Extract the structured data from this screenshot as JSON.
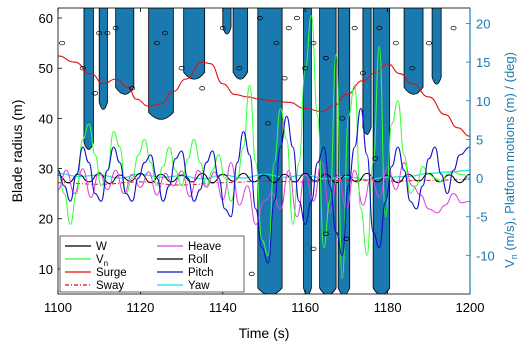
{
  "chart_data": {
    "type": "line",
    "xlabel": "Time (s)",
    "ylabel_left": "Blade radius (m)",
    "ylabel_right_main": "V",
    "ylabel_right_sub": "n",
    "ylabel_right_rest": " (m/s), Platform motions (m) / (deg)",
    "xlim": [
      1100,
      1200
    ],
    "ylim_left": [
      5,
      62
    ],
    "ylim_right": [
      -15,
      22
    ],
    "x_ticks": [
      "1100",
      "1120",
      "1140",
      "1160",
      "1180",
      "1200"
    ],
    "y_left_ticks": [
      "10",
      "20",
      "30",
      "40",
      "50",
      "60"
    ],
    "y_right_ticks": [
      "-10",
      "-5",
      "0",
      "5",
      "10",
      "15",
      "20"
    ],
    "colors": {
      "filled_regions": "#1a7ab0",
      "W": "#000000",
      "Vn": "#33ff33",
      "Surge": "#e01010",
      "Sway": "#d01010",
      "Heave": "#e040e0",
      "Roll": "#000000",
      "Pitch": "#1010c8",
      "Yaw": "#20e0e0",
      "right_axis": "#1a7ab0"
    },
    "legend": {
      "placement": "bottom-left",
      "entries": [
        {
          "key": "W",
          "label": "W",
          "sub": ""
        },
        {
          "key": "Heave",
          "label": "Heave",
          "sub": ""
        },
        {
          "key": "Vn",
          "label": "V",
          "sub": "n"
        },
        {
          "key": "Roll",
          "label": "Roll",
          "sub": ""
        },
        {
          "key": "Surge",
          "label": "Surge",
          "sub": ""
        },
        {
          "key": "Pitch",
          "label": "Pitch",
          "sub": ""
        },
        {
          "key": "Sway",
          "label": "Sway",
          "sub": ""
        },
        {
          "key": "Yaw",
          "label": "Yaw",
          "sub": ""
        }
      ]
    },
    "filled_regions_blade_radius": [
      {
        "name": "region-1",
        "x_start": 1106.3,
        "x_end": 1108.6,
        "bottom": 34
      },
      {
        "name": "region-2",
        "x_start": 1110.0,
        "x_end": 1112.0,
        "bottom": 42
      },
      {
        "name": "region-3",
        "x_start": 1114.0,
        "x_end": 1118.4,
        "bottom": 45
      },
      {
        "name": "region-4",
        "x_start": 1122.0,
        "x_end": 1128.0,
        "bottom": 40
      },
      {
        "name": "region-5",
        "x_start": 1130.5,
        "x_end": 1135.6,
        "bottom": 48
      },
      {
        "name": "region-6",
        "x_start": 1140.0,
        "x_end": 1142.0,
        "bottom": 57
      },
      {
        "name": "region-7",
        "x_start": 1142.5,
        "x_end": 1146.0,
        "bottom": 48
      },
      {
        "name": "region-8",
        "x_start": 1148.5,
        "x_end": 1154.4,
        "bottom": 5
      },
      {
        "name": "region-9",
        "x_start": 1159.6,
        "x_end": 1161.5,
        "bottom": 5
      },
      {
        "name": "region-10",
        "x_start": 1163.5,
        "x_end": 1167.5,
        "bottom": 5
      },
      {
        "name": "region-11",
        "x_start": 1168.0,
        "x_end": 1170.8,
        "bottom": 5
      },
      {
        "name": "region-12",
        "x_start": 1174.0,
        "x_end": 1176.0,
        "bottom": 37
      },
      {
        "name": "region-13",
        "x_start": 1176.5,
        "x_end": 1180.5,
        "bottom": 5
      },
      {
        "name": "region-14",
        "x_start": 1184.0,
        "x_end": 1188.6,
        "bottom": 45
      },
      {
        "name": "region-15",
        "x_start": 1190.8,
        "x_end": 1193.0,
        "bottom": 47
      }
    ],
    "W_points": [
      [
        1101,
        55
      ],
      [
        1106,
        50
      ],
      [
        1109,
        45
      ],
      [
        1110,
        57
      ],
      [
        1112,
        57
      ],
      [
        1114,
        58
      ],
      [
        1118,
        46
      ],
      [
        1124,
        55
      ],
      [
        1126,
        57
      ],
      [
        1130,
        50
      ],
      [
        1135,
        46
      ],
      [
        1140,
        58
      ],
      [
        1144,
        50
      ],
      [
        1149,
        60
      ],
      [
        1151,
        39
      ],
      [
        1153,
        55
      ],
      [
        1155,
        48
      ],
      [
        1156,
        58
      ],
      [
        1158,
        60
      ],
      [
        1160,
        50
      ],
      [
        1162,
        55
      ],
      [
        1165,
        52
      ],
      [
        1169,
        40
      ],
      [
        1172,
        58
      ],
      [
        1174,
        49
      ],
      [
        1178,
        58
      ],
      [
        1182,
        55
      ],
      [
        1186,
        50
      ],
      [
        1190,
        55
      ],
      [
        1196,
        58
      ],
      [
        1147,
        9
      ],
      [
        1162,
        14
      ],
      [
        1165,
        17
      ],
      [
        1170,
        16
      ],
      [
        1177,
        32
      ]
    ],
    "series": [
      {
        "name": "Surge",
        "axis": "right",
        "key": "Surge",
        "x": [
          1100,
          1104,
          1108,
          1111,
          1114,
          1117,
          1119,
          1122,
          1125,
          1128,
          1131,
          1135,
          1137,
          1140,
          1143,
          1146,
          1149,
          1152,
          1156,
          1160,
          1164,
          1167,
          1170,
          1174,
          1177,
          1180,
          1183,
          1186,
          1190,
          1194,
          1197,
          1200
        ],
        "y": [
          15.8,
          15.0,
          13.5,
          12.2,
          12.8,
          11.8,
          10.2,
          9.3,
          9.6,
          11.2,
          12.8,
          15.0,
          14.8,
          12.2,
          10.8,
          10.5,
          10.2,
          10.0,
          9.8,
          9.0,
          8.6,
          9.4,
          10.8,
          12.6,
          13.6,
          14.8,
          13.5,
          12.2,
          10.5,
          8.2,
          6.5,
          5.4
        ]
      },
      {
        "name": "Sway",
        "axis": "right",
        "key": "Sway",
        "x": [
          1100,
          1110,
          1120,
          1130,
          1140,
          1150,
          1160,
          1170,
          1180,
          1190,
          1200
        ],
        "y": [
          -0.6,
          -0.8,
          -0.5,
          -0.9,
          -0.6,
          -0.4,
          -0.5,
          -0.3,
          -0.4,
          -0.3,
          -0.2
        ]
      },
      {
        "name": "Yaw",
        "axis": "right",
        "key": "Yaw",
        "x": [
          1100,
          1105,
          1110,
          1115,
          1120,
          1125,
          1130,
          1135,
          1140,
          1145,
          1150,
          1155,
          1160,
          1165,
          1170,
          1175,
          1180,
          1185,
          1190,
          1195,
          1200
        ],
        "y": [
          0.6,
          0.2,
          0.4,
          0.0,
          0.5,
          0.1,
          0.3,
          -0.1,
          0.4,
          0.0,
          0.5,
          0.1,
          0.4,
          -0.1,
          0.2,
          -0.2,
          0.1,
          0.2,
          0.6,
          0.8,
          1.0
        ]
      },
      {
        "name": "Roll",
        "axis": "right",
        "key": "Roll",
        "x": [
          1100,
          1102.5,
          1105,
          1107.5,
          1110,
          1112.5,
          1115,
          1117.5,
          1120,
          1122.5,
          1125,
          1127.5,
          1130,
          1132.5,
          1135,
          1137.5,
          1140,
          1142.5,
          1145,
          1147.5,
          1150,
          1152.5,
          1155,
          1157.5,
          1160,
          1162.5,
          1165,
          1167.5,
          1170,
          1172.5,
          1175,
          1177.5,
          1180,
          1182.5,
          1185,
          1187.5,
          1190,
          1192.5,
          1195,
          1197.5,
          1200
        ],
        "y": [
          0.4,
          -0.6,
          0.5,
          -0.5,
          0.6,
          -0.7,
          0.4,
          -0.4,
          0.6,
          -0.6,
          0.5,
          -0.5,
          0.4,
          -0.5,
          0.6,
          -0.6,
          0.5,
          -0.4,
          0.6,
          -0.5,
          0.4,
          -0.6,
          0.5,
          -0.5,
          0.6,
          -0.4,
          0.5,
          -0.6,
          0.4,
          -0.5,
          0.6,
          -0.5,
          0.4,
          -0.6,
          0.5,
          -0.4,
          0.6,
          -0.5,
          0.4,
          -0.6,
          0.5
        ]
      },
      {
        "name": "Heave",
        "axis": "right",
        "key": "Heave",
        "x": [
          1100,
          1102,
          1104,
          1106,
          1108,
          1110,
          1112,
          1114,
          1116,
          1118,
          1120,
          1122,
          1124,
          1126,
          1128,
          1130,
          1132,
          1134,
          1136,
          1138,
          1140,
          1142,
          1144,
          1146,
          1148,
          1150,
          1152,
          1154,
          1156,
          1158,
          1160,
          1162,
          1164,
          1166,
          1168,
          1170,
          1172,
          1174,
          1176,
          1178,
          1180,
          1182,
          1184,
          1186,
          1188,
          1190,
          1192,
          1194,
          1196,
          1198,
          1200
        ],
        "y": [
          -1.5,
          1.0,
          -2.0,
          1.2,
          -2.5,
          0.8,
          -1.5,
          1.0,
          -2.0,
          0.5,
          -1.2,
          0.8,
          -2.2,
          0.6,
          -1.0,
          0.9,
          -2.4,
          1.0,
          -1.2,
          0.8,
          -2.8,
          2.0,
          -3.5,
          -1.0,
          -6.0,
          -3.0,
          -2.0,
          -4.0,
          1.0,
          -5.0,
          0.5,
          -3.0,
          2.0,
          -4.5,
          0.5,
          -4.0,
          1.0,
          -3.5,
          0.0,
          -2.5,
          1.5,
          -1.5,
          2.0,
          -1.0,
          -2.2,
          -4.0,
          -4.5,
          -3.5,
          -2.0,
          -3.2,
          -3.0
        ]
      },
      {
        "name": "Vn",
        "axis": "right",
        "key": "Vn",
        "x": [
          1100,
          1101.5,
          1103,
          1104.5,
          1106,
          1107.5,
          1109,
          1110.5,
          1112,
          1113.5,
          1115,
          1116.5,
          1118,
          1119.5,
          1121,
          1122.5,
          1124,
          1125.5,
          1127,
          1128.5,
          1130,
          1131.5,
          1133,
          1134.5,
          1136,
          1137.5,
          1139,
          1140.5,
          1142,
          1143.5,
          1145,
          1146.5,
          1148,
          1149.5,
          1151,
          1152.5,
          1154,
          1155.5,
          1157,
          1158.5,
          1160,
          1161.5,
          1163,
          1164.5,
          1166,
          1167.5,
          1169,
          1170.5,
          1172,
          1173.5,
          1175,
          1176.5,
          1178,
          1179.5,
          1181,
          1182.5,
          1184,
          1185.5,
          1187,
          1188.5,
          1190,
          1191.5,
          1193,
          1194.5,
          1196,
          1197.5,
          1200
        ],
        "y": [
          1.0,
          -2.0,
          -6.0,
          -2.0,
          5.0,
          7.0,
          3.0,
          -1.0,
          1.0,
          6.0,
          4.0,
          -2.0,
          0.0,
          3.0,
          5.0,
          2.0,
          -1.0,
          1.5,
          4.0,
          1.0,
          -1.0,
          2.5,
          5.0,
          2.0,
          -1.0,
          1.0,
          3.0,
          0.0,
          -3.0,
          0.0,
          4.0,
          12.0,
          2.0,
          -8.0,
          -10.0,
          2.0,
          9.0,
          5.0,
          -6.0,
          2.0,
          14.0,
          21.0,
          8.0,
          -9.0,
          -3.0,
          16.0,
          -13.0,
          8.0,
          12.0,
          -4.0,
          -10.0,
          2.0,
          17.0,
          -5.0,
          7.0,
          10.0,
          3.0,
          -2.0,
          -1.0,
          1.5,
          0.5,
          0.0,
          -0.5,
          0.5,
          0.8,
          0.5,
          0.3
        ]
      },
      {
        "name": "Pitch",
        "axis": "right",
        "key": "Pitch",
        "x": [
          1100,
          1101.5,
          1103,
          1104.5,
          1106,
          1107.5,
          1109,
          1110.5,
          1112,
          1113.5,
          1115,
          1116.5,
          1118,
          1119.5,
          1121,
          1122.5,
          1124,
          1125.5,
          1127,
          1128.5,
          1130,
          1131.5,
          1133,
          1134.5,
          1136,
          1137.5,
          1139,
          1140.5,
          1142,
          1143.5,
          1145,
          1146.5,
          1148,
          1149.5,
          1151,
          1152.5,
          1154,
          1155.5,
          1157,
          1158.5,
          1160,
          1161.5,
          1163,
          1164.5,
          1166,
          1167.5,
          1169,
          1170.5,
          1172,
          1173.5,
          1175,
          1176.5,
          1178,
          1179.5,
          1181,
          1182.5,
          1184,
          1185.5,
          1187,
          1188.5,
          1190,
          1191.5,
          1193,
          1194.5,
          1196,
          1197.5,
          1200
        ],
        "y": [
          1.0,
          -1.0,
          -3.0,
          0.5,
          4.0,
          2.0,
          -2.0,
          -3.0,
          1.0,
          4.0,
          2.0,
          -2.0,
          -3.0,
          0.0,
          2.0,
          3.0,
          0.0,
          -3.0,
          -1.0,
          2.5,
          3.5,
          0.0,
          -3.0,
          -1.5,
          2.0,
          3.5,
          0.0,
          -4.0,
          -5.0,
          2.0,
          6.0,
          3.0,
          -4.0,
          -9.0,
          -11.0,
          -3.0,
          4.0,
          8.0,
          4.0,
          -3.0,
          -6.0,
          -3.0,
          2.0,
          4.0,
          -1.0,
          -7.0,
          -10.0,
          -1.0,
          4.0,
          9.0,
          3.0,
          -7.0,
          -9.0,
          -3.0,
          1.5,
          4.0,
          1.0,
          -3.0,
          -4.0,
          -1.0,
          2.5,
          4.0,
          0.5,
          -2.0,
          1.0,
          3.0,
          4.0
        ]
      }
    ]
  }
}
